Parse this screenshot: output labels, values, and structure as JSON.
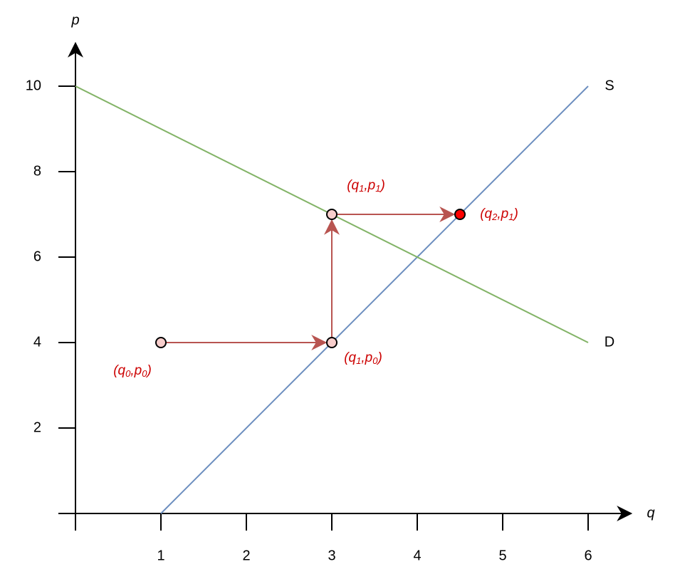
{
  "chart_data": {
    "type": "line",
    "x_label": "q",
    "y_label": "p",
    "xlim": [
      0,
      6.5
    ],
    "ylim": [
      0,
      11
    ],
    "xticks": [
      1,
      2,
      3,
      4,
      5,
      6
    ],
    "yticks": [
      2,
      4,
      6,
      8,
      10
    ],
    "series": [
      {
        "name": "S",
        "color": "#6c8ebf",
        "label_color": "#0000cc",
        "x": [
          1,
          6
        ],
        "values": [
          0,
          10
        ]
      },
      {
        "name": "D",
        "color": "#82b366",
        "label_color": "#009900",
        "x": [
          0,
          6
        ],
        "values": [
          10,
          4
        ]
      }
    ],
    "points": [
      {
        "x": 1,
        "y": 4,
        "color": "#f8cecc",
        "label": [
          "(q",
          "0",
          ",p",
          "0",
          ")"
        ]
      },
      {
        "x": 3,
        "y": 4,
        "color": "#f8cecc",
        "label": [
          "(q",
          "1",
          ",p",
          "0",
          ")"
        ]
      },
      {
        "x": 3,
        "y": 7,
        "color": "#f8cecc",
        "label": [
          "(q",
          "1",
          ",p",
          "1",
          ")"
        ]
      },
      {
        "x": 4.5,
        "y": 7,
        "color": "#ff0000",
        "label": [
          "(q",
          "2",
          ",p",
          "1",
          ")"
        ]
      }
    ],
    "arrow_color": "#b85450"
  }
}
